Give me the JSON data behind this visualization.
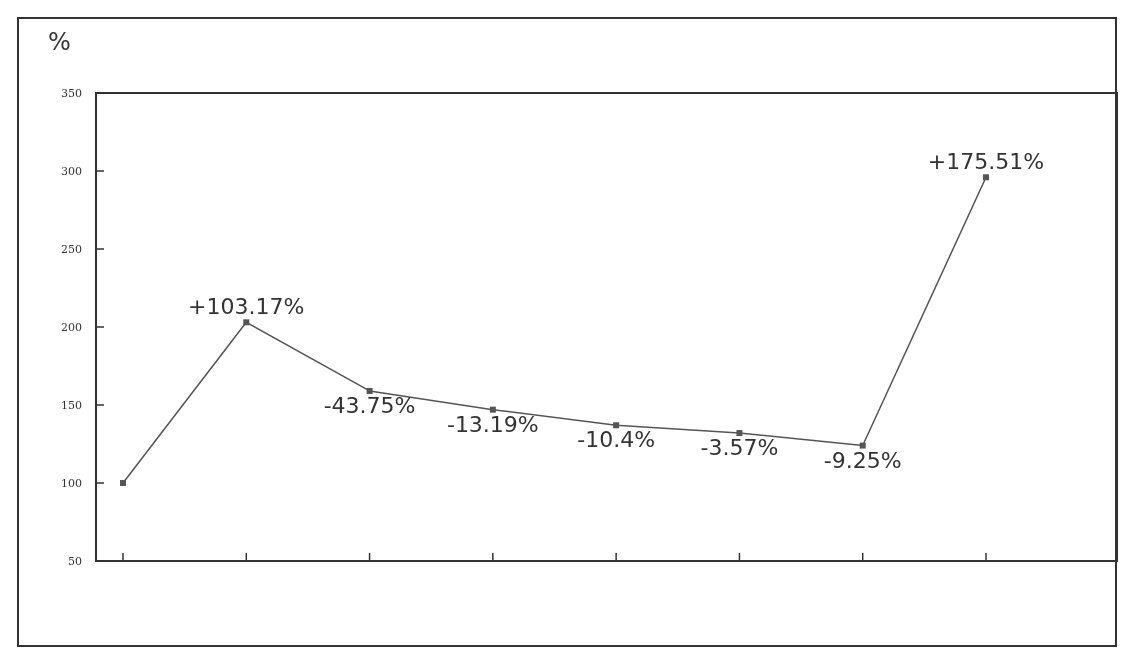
{
  "chart_data": {
    "type": "line",
    "ylabel": "%",
    "categories": [
      null,
      null,
      null,
      null,
      null,
      null,
      null,
      null
    ],
    "series": [
      {
        "color": "#555555",
        "values": [
          100,
          203,
          159,
          147,
          137,
          132,
          124,
          296
        ]
      }
    ],
    "annotations": [
      {
        "text": "+103.17%",
        "y": 203
      },
      {
        "text": "-43.75%",
        "y": 159
      },
      {
        "text": "-13.19%",
        "y": 147
      },
      {
        "text": "-10.4%",
        "y": 137
      },
      {
        "text": "-3.57%",
        "y": 132
      },
      {
        "text": "-9.25%",
        "y": 124
      },
      {
        "text": "+175.51%",
        "y": 296
      }
    ],
    "ylim": [
      50,
      350
    ],
    "yticks": [
      50,
      100,
      150,
      200,
      250,
      300,
      350
    ],
    "grid": false,
    "marker": "square",
    "line_style": "solid"
  }
}
